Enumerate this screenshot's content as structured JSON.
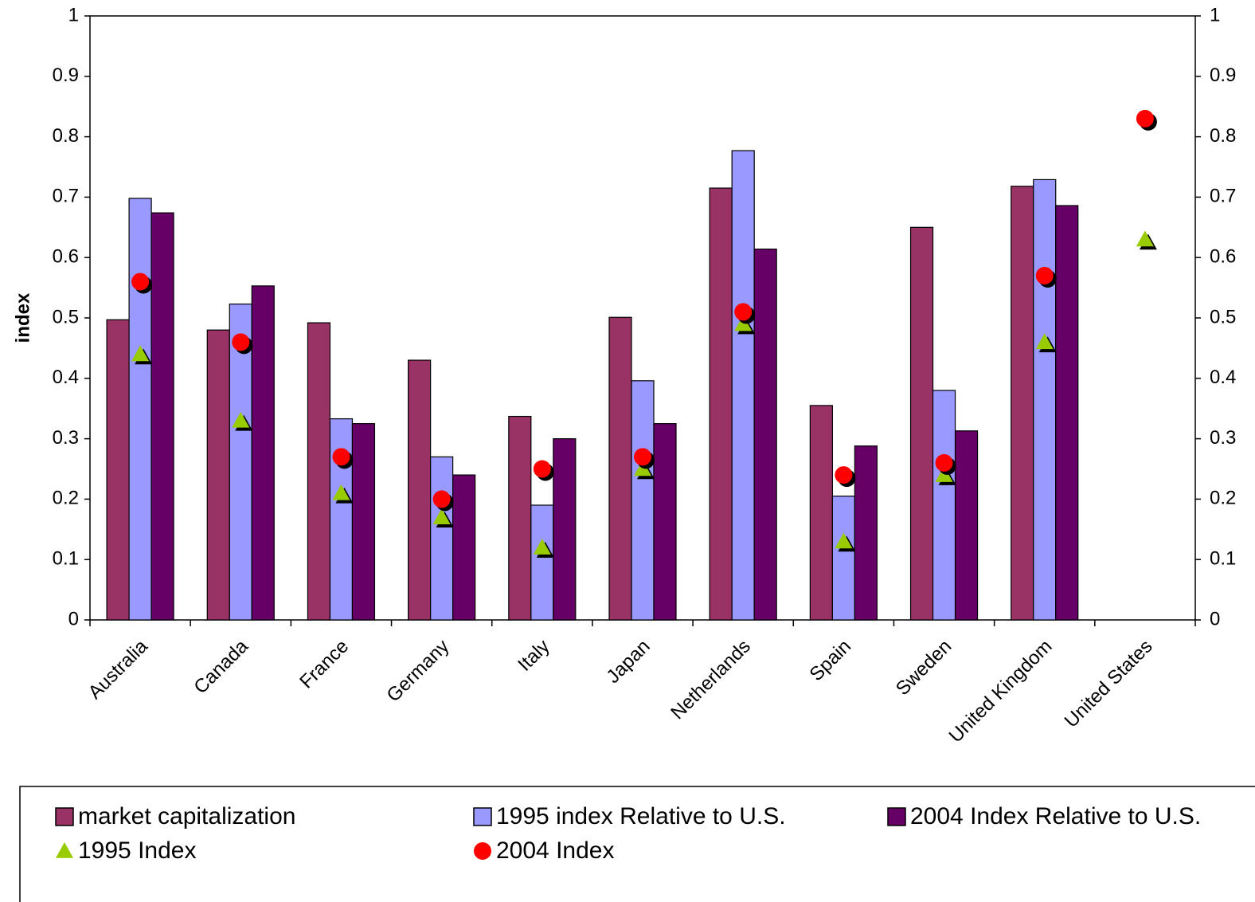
{
  "chart_data": {
    "type": "bar",
    "y_label": "index",
    "categories": [
      "Australia",
      "Canada",
      "France",
      "Germany",
      "Italy",
      "Japan",
      "Netherlands",
      "Spain",
      "Sweden",
      "United Kingdom",
      "United States"
    ],
    "series": [
      {
        "name": "market capitalization",
        "type": "bar",
        "color": "#993366",
        "values": [
          0.497,
          0.48,
          0.492,
          0.43,
          0.337,
          0.501,
          0.715,
          0.355,
          0.65,
          0.718,
          null
        ]
      },
      {
        "name": "1995 index Relative to U.S.",
        "type": "bar",
        "color": "#9999ff",
        "values": [
          0.698,
          0.523,
          0.333,
          0.27,
          0.19,
          0.396,
          0.777,
          0.205,
          0.38,
          0.729,
          null
        ]
      },
      {
        "name": "2004 Index Relative to U.S.",
        "type": "bar",
        "color": "#660066",
        "values": [
          0.674,
          0.553,
          0.325,
          0.24,
          0.3,
          0.325,
          0.614,
          0.288,
          0.313,
          0.686,
          null
        ]
      },
      {
        "name": "1995 Index",
        "type": "scatter",
        "marker": "triangle",
        "axis": "y2",
        "color": "#99cc00",
        "values": [
          0.44,
          0.33,
          0.21,
          0.17,
          0.12,
          0.25,
          0.49,
          0.13,
          0.24,
          0.46,
          0.63
        ]
      },
      {
        "name": "2004 Index",
        "type": "scatter",
        "marker": "circle",
        "axis": "y2",
        "color": "#ff0000",
        "values": [
          0.56,
          0.46,
          0.27,
          0.2,
          0.25,
          0.27,
          0.51,
          0.24,
          0.26,
          0.57,
          0.83
        ]
      }
    ],
    "ylim": [
      0,
      1
    ],
    "yticks": [
      0,
      0.1,
      0.2,
      0.3,
      0.4,
      0.5,
      0.6,
      0.7,
      0.8,
      0.9,
      1
    ],
    "y2lim": [
      0,
      1
    ],
    "y2ticks": [
      0,
      0.1,
      0.2,
      0.3,
      0.4,
      0.5,
      0.6,
      0.7,
      0.8,
      0.9,
      1
    ],
    "legend": "bottom"
  }
}
